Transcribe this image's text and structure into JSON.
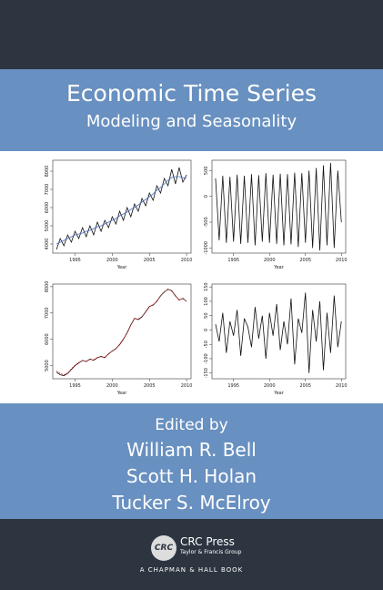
{
  "header": {
    "title": "Economic Time Series",
    "subtitle": "Modeling and Seasonality"
  },
  "panels": [
    {
      "type": "line",
      "xlim": [
        1992,
        2010.6
      ],
      "ylim": [
        3500,
        8600
      ],
      "xticks": [
        1995,
        2000,
        2005,
        2010
      ],
      "yticks": [
        4000,
        5000,
        6000,
        7000,
        8000
      ],
      "xlabel": "Year",
      "x": [
        1992.5,
        1993,
        1993.5,
        1994,
        1994.5,
        1995,
        1995.5,
        1996,
        1996.5,
        1997,
        1997.5,
        1998,
        1998.5,
        1999,
        1999.5,
        2000,
        2000.5,
        2001,
        2001.5,
        2002,
        2002.5,
        2003,
        2003.5,
        2004,
        2004.5,
        2005,
        2005.5,
        2006,
        2006.5,
        2007,
        2007.5,
        2008,
        2008.5,
        2009,
        2009.5,
        2010
      ],
      "series": [
        {
          "color": "#111111",
          "values": [
            3700,
            4300,
            3900,
            4500,
            4100,
            4700,
            4300,
            4900,
            4400,
            5000,
            4500,
            5200,
            4700,
            5300,
            4900,
            5500,
            5100,
            5800,
            5300,
            6000,
            5500,
            6200,
            5800,
            6500,
            6100,
            6800,
            6400,
            7200,
            6800,
            7600,
            7200,
            8100,
            7300,
            8200,
            7400,
            7800
          ]
        },
        {
          "color": "#4a6fc0",
          "values": [
            4000,
            4100,
            4200,
            4300,
            4400,
            4500,
            4550,
            4600,
            4700,
            4750,
            4850,
            4950,
            5000,
            5100,
            5200,
            5300,
            5400,
            5550,
            5650,
            5750,
            5900,
            6000,
            6150,
            6300,
            6450,
            6600,
            6750,
            6950,
            7100,
            7300,
            7500,
            7650,
            7700,
            7700,
            7650,
            7600
          ]
        }
      ]
    },
    {
      "type": "line",
      "xlim": [
        1992,
        2010.6
      ],
      "ylim": [
        -1100,
        700
      ],
      "xticks": [
        1995,
        2000,
        2005,
        2010
      ],
      "yticks": [
        -1000,
        -500,
        0,
        500
      ],
      "xlabel": "Year",
      "x": [
        1992.5,
        1993,
        1993.5,
        1994,
        1994.5,
        1995,
        1995.5,
        1996,
        1996.5,
        1997,
        1997.5,
        1998,
        1998.5,
        1999,
        1999.5,
        2000,
        2000.5,
        2001,
        2001.5,
        2002,
        2002.5,
        2003,
        2003.5,
        2004,
        2004.5,
        2005,
        2005.5,
        2006,
        2006.5,
        2007,
        2007.5,
        2008,
        2008.5,
        2009,
        2009.5,
        2010
      ],
      "series": [
        {
          "color": "#111111",
          "values": [
            350,
            -850,
            400,
            -900,
            380,
            -880,
            420,
            -920,
            400,
            -900,
            430,
            -950,
            410,
            -880,
            450,
            -900,
            420,
            -920,
            440,
            -950,
            430,
            -930,
            460,
            -980,
            450,
            -900,
            500,
            -1000,
            550,
            -1050,
            600,
            -950,
            650,
            -1000,
            500,
            -500
          ]
        }
      ]
    },
    {
      "type": "line",
      "xlim": [
        1992,
        2010.6
      ],
      "ylim": [
        4500,
        8100
      ],
      "xticks": [
        1995,
        2000,
        2005,
        2010
      ],
      "yticks": [
        5000,
        6000,
        7000,
        8000
      ],
      "xlabel": "Year",
      "x": [
        1992.5,
        1993,
        1993.5,
        1994,
        1994.5,
        1995,
        1995.5,
        1996,
        1996.5,
        1997,
        1997.5,
        1998,
        1998.5,
        1999,
        1999.5,
        2000,
        2000.5,
        2001,
        2001.5,
        2002,
        2002.5,
        2003,
        2003.5,
        2004,
        2004.5,
        2005,
        2005.5,
        2006,
        2006.5,
        2007,
        2007.5,
        2008,
        2008.5,
        2009,
        2009.5,
        2010
      ],
      "series": [
        {
          "color": "#111111",
          "values": [
            4750,
            4650,
            4620,
            4700,
            4850,
            5000,
            5100,
            5200,
            5150,
            5250,
            5200,
            5300,
            5350,
            5300,
            5450,
            5550,
            5650,
            5800,
            6000,
            6250,
            6550,
            6800,
            6750,
            6850,
            7050,
            7250,
            7300,
            7450,
            7650,
            7800,
            7900,
            7850,
            7650,
            7500,
            7550,
            7450
          ]
        },
        {
          "color": "#d02020",
          "dash": true,
          "values": [
            4800,
            4700,
            4650,
            4720,
            4880,
            5020,
            5120,
            5180,
            5170,
            5230,
            5220,
            5310,
            5330,
            5320,
            5430,
            5570,
            5630,
            5820,
            6020,
            6230,
            6530,
            6780,
            6770,
            6870,
            7030,
            7230,
            7320,
            7430,
            7670,
            7780,
            7920,
            7830,
            7670,
            7480,
            7570,
            7430
          ]
        }
      ]
    },
    {
      "type": "line",
      "xlim": [
        1992,
        2010.6
      ],
      "ylim": [
        -170,
        160
      ],
      "xticks": [
        1995,
        2000,
        2005,
        2010
      ],
      "yticks": [
        -150,
        -100,
        -50,
        0,
        50,
        100,
        150
      ],
      "xlabel": "Year",
      "x": [
        1992.5,
        1993,
        1993.5,
        1994,
        1994.5,
        1995,
        1995.5,
        1996,
        1996.5,
        1997,
        1997.5,
        1998,
        1998.5,
        1999,
        1999.5,
        2000,
        2000.5,
        2001,
        2001.5,
        2002,
        2002.5,
        2003,
        2003.5,
        2004,
        2004.5,
        2005,
        2005.5,
        2006,
        2006.5,
        2007,
        2007.5,
        2008,
        2008.5,
        2009,
        2009.5,
        2010
      ],
      "series": [
        {
          "color": "#111111",
          "values": [
            20,
            -40,
            60,
            -80,
            30,
            -20,
            70,
            -90,
            40,
            10,
            -60,
            80,
            -30,
            50,
            -100,
            60,
            -20,
            90,
            -70,
            30,
            -50,
            110,
            -120,
            40,
            -10,
            130,
            -150,
            70,
            -40,
            100,
            -140,
            60,
            -80,
            120,
            -60,
            30
          ]
        }
      ]
    }
  ],
  "editors": {
    "edited_by": "Edited by",
    "names": [
      "William R. Bell",
      "Scott H. Holan",
      "Tucker S. McElroy"
    ]
  },
  "publisher": {
    "logo": "CRC",
    "name": "CRC Press",
    "group": "Taylor & Francis Group",
    "imprint": "A CHAPMAN & HALL BOOK"
  }
}
